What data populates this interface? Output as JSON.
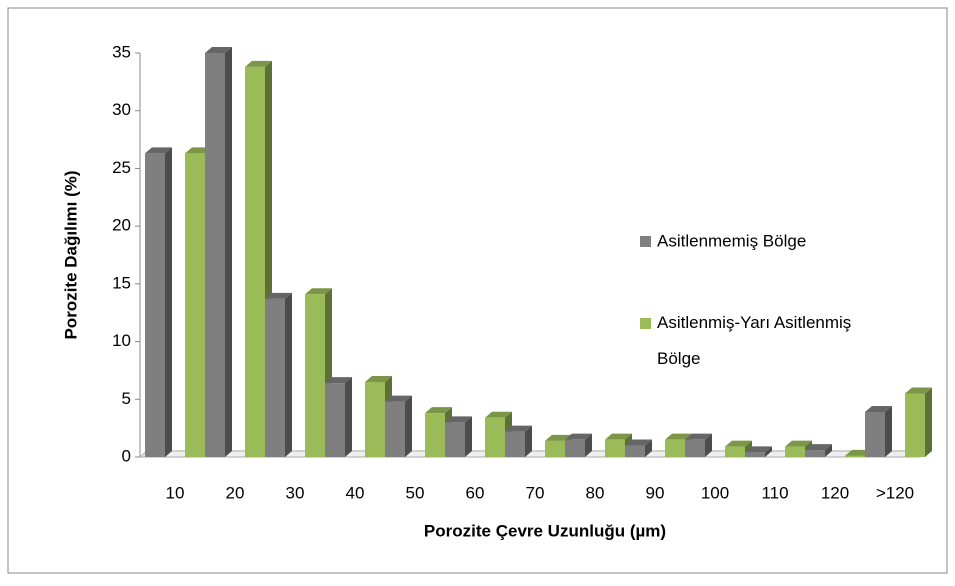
{
  "chart_data": {
    "type": "bar",
    "x_label": "Porozite Çevre Uzunluğu (µm)",
    "y_label": "Porozite Dağılımı (%)",
    "categories": [
      "10",
      "20",
      "30",
      "40",
      "50",
      "60",
      "70",
      "80",
      "90",
      "100",
      "110",
      "120",
      ">120"
    ],
    "series": [
      {
        "name": "Asitlenmemiş Bölge",
        "color": "#7f7f7f",
        "values": [
          26.3,
          35,
          13.7,
          6.4,
          4.8,
          3.0,
          2.2,
          1.5,
          1.0,
          1.5,
          0.4,
          0.6,
          3.9
        ]
      },
      {
        "name": "Asitlenmiş-Yarı Asitlenmiş Bölge",
        "color": "#9bbb59",
        "values": [
          26.3,
          33.8,
          14.1,
          6.5,
          3.8,
          3.4,
          1.4,
          1.5,
          1.5,
          0.9,
          0.9,
          0.1,
          5.5
        ]
      }
    ],
    "ylim": [
      0,
      35
    ],
    "yticks": [
      0,
      5,
      10,
      15,
      20,
      25,
      30,
      35
    ],
    "legend": "right"
  }
}
